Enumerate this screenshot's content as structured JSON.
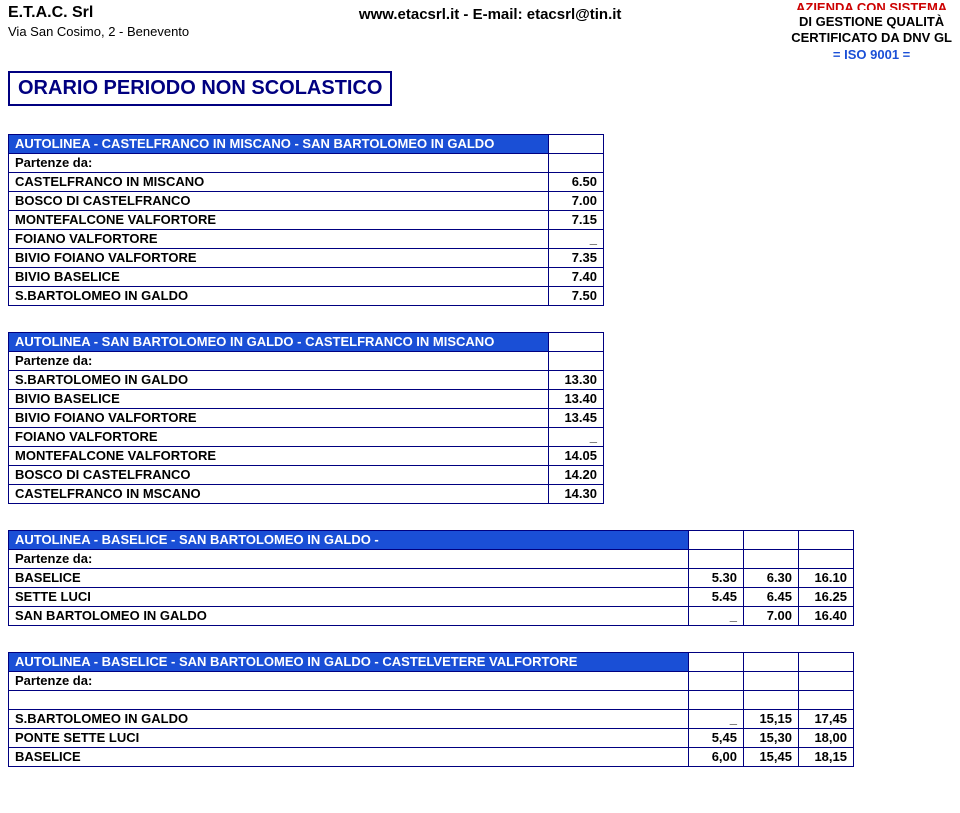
{
  "header": {
    "company": "E.T.A.C. Srl",
    "address": "Via San Cosimo, 2 - Benevento",
    "web_email": "www.etacsrl.it  -  E-mail: etacsrl@tin.it",
    "cert_line0": "AZIENDA CON SISTEMA",
    "cert_line1": "DI GESTIONE QUALITÀ",
    "cert_line2": "CERTIFICATO DA DNV GL",
    "iso": "= ISO 9001 ="
  },
  "title": "ORARIO PERIODO NON SCOLASTICO",
  "partenze_label": "Partenze da:",
  "tables": [
    {
      "route": "AUTOLINEA - CASTELFRANCO IN MISCANO - SAN BARTOLOMEO IN GALDO",
      "cols": 1,
      "stop_width": 540,
      "rows": [
        {
          "stop": "CASTELFRANCO IN MISCANO",
          "times": [
            "6.50"
          ]
        },
        {
          "stop": "BOSCO DI CASTELFRANCO",
          "times": [
            "7.00"
          ]
        },
        {
          "stop": "MONTEFALCONE VALFORTORE",
          "times": [
            "7.15"
          ]
        },
        {
          "stop": "FOIANO VALFORTORE",
          "times": [
            "_"
          ]
        },
        {
          "stop": "BIVIO FOIANO VALFORTORE",
          "times": [
            "7.35"
          ]
        },
        {
          "stop": "BIVIO BASELICE",
          "times": [
            "7.40"
          ]
        },
        {
          "stop": "S.BARTOLOMEO IN GALDO",
          "times": [
            "7.50"
          ]
        }
      ]
    },
    {
      "route": "AUTOLINEA - SAN BARTOLOMEO IN GALDO - CASTELFRANCO IN MISCANO",
      "cols": 1,
      "stop_width": 540,
      "rows": [
        {
          "stop": "S.BARTOLOMEO IN GALDO",
          "times": [
            "13.30"
          ]
        },
        {
          "stop": "BIVIO BASELICE",
          "times": [
            "13.40"
          ]
        },
        {
          "stop": "BIVIO FOIANO VALFORTORE",
          "times": [
            "13.45"
          ]
        },
        {
          "stop": "FOIANO VALFORTORE",
          "times": [
            "_"
          ]
        },
        {
          "stop": "MONTEFALCONE VALFORTORE",
          "times": [
            "14.05"
          ]
        },
        {
          "stop": "BOSCO DI CASTELFRANCO",
          "times": [
            "14.20"
          ]
        },
        {
          "stop": "CASTELFRANCO IN MSCANO",
          "times": [
            "14.30"
          ]
        }
      ]
    },
    {
      "route": "AUTOLINEA - BASELICE  - SAN BARTOLOMEO IN GALDO -",
      "cols": 3,
      "stop_width": 680,
      "rows": [
        {
          "stop": "BASELICE",
          "times": [
            "5.30",
            "6.30",
            "16.10"
          ]
        },
        {
          "stop": "SETTE LUCI",
          "times": [
            "5.45",
            "6.45",
            "16.25"
          ]
        },
        {
          "stop": "SAN BARTOLOMEO IN GALDO",
          "times": [
            "_",
            "7.00",
            "16.40"
          ]
        }
      ]
    },
    {
      "route": "AUTOLINEA - BASELICE  - SAN BARTOLOMEO IN GALDO - CASTELVETERE VALFORTORE",
      "cols": 3,
      "stop_width": 680,
      "blank_row_after_partenze": true,
      "rows": [
        {
          "stop": "S.BARTOLOMEO IN GALDO",
          "times": [
            "_",
            "15,15",
            "17,45"
          ]
        },
        {
          "stop": "PONTE SETTE LUCI",
          "times": [
            "5,45",
            "15,30",
            "18,00"
          ]
        },
        {
          "stop": "BASELICE",
          "times": [
            "6,00",
            "15,45",
            "18,15"
          ]
        }
      ]
    }
  ]
}
